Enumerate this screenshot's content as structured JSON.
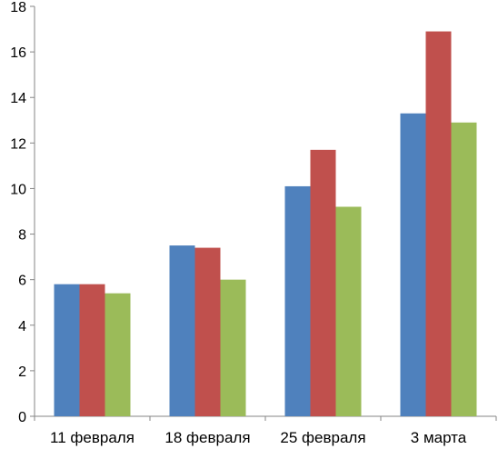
{
  "chart_data": {
    "type": "bar",
    "title": "",
    "xlabel": "",
    "ylabel": "",
    "categories": [
      "11 февраля",
      "18 февраля",
      "25 февраля",
      "3 марта"
    ],
    "series": [
      {
        "values": [
          5.8,
          7.5,
          10.1,
          13.3
        ],
        "color": "#4F81BD"
      },
      {
        "values": [
          5.8,
          7.4,
          11.7,
          16.9
        ],
        "color": "#C0504D"
      },
      {
        "values": [
          5.4,
          6.0,
          9.2,
          12.9
        ],
        "color": "#9BBB59"
      }
    ],
    "ylim": [
      0,
      18
    ],
    "yticks": [
      "0",
      "2",
      "4",
      "6",
      "8",
      "10",
      "12",
      "14",
      "16",
      "18"
    ],
    "grid": false,
    "legend": "none"
  }
}
